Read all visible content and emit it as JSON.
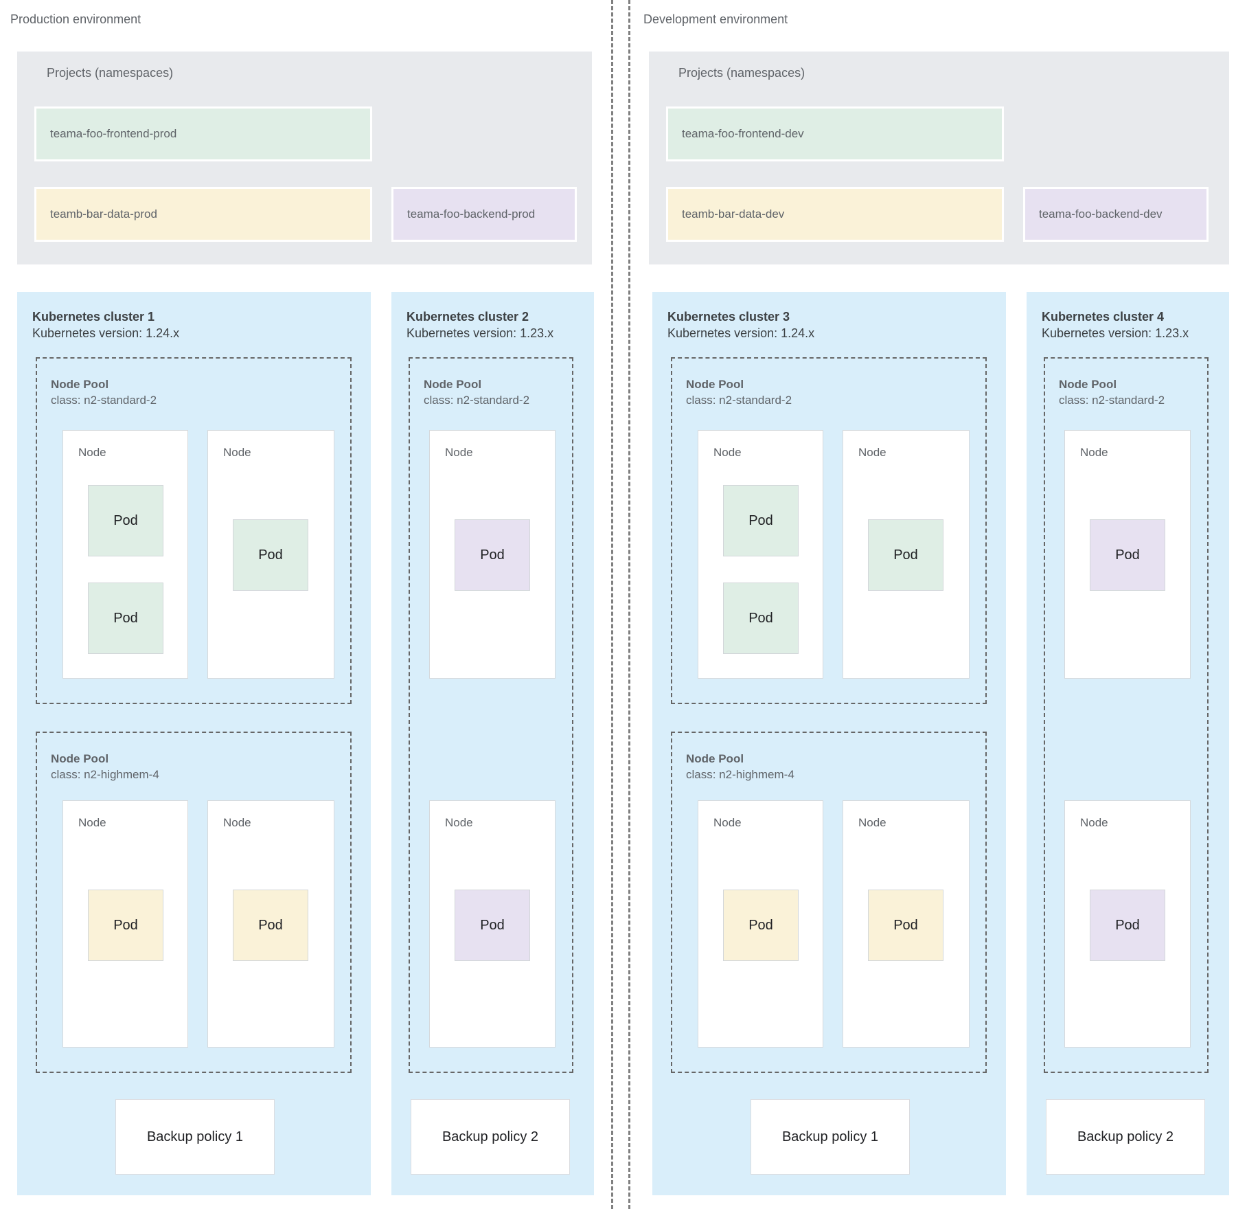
{
  "colors": {
    "cluster_bg": "#d9eefa",
    "projects_panel_bg": "#e8eaed",
    "mint": "#dfeee5",
    "yellow": "#faf2d8",
    "purple": "#e7e1f1",
    "node_bg": "#ffffff",
    "node_border": "#d6d9dc",
    "dashed_border": "#666666",
    "divider": "#808080",
    "text_gray": "#5f6368",
    "text_dark": "#3c4043",
    "pod_text": "#202124"
  },
  "environments": [
    {
      "label": "Production environment",
      "projects": {
        "title": "Projects (namespaces)",
        "namespaces": [
          {
            "name": "teama-foo-frontend-prod",
            "color": "mint"
          },
          {
            "name": "teamb-bar-data-prod",
            "color": "yellow"
          },
          {
            "name": "teama-foo-backend-prod",
            "color": "purple"
          }
        ]
      },
      "clusters": [
        {
          "title": "Kubernetes cluster 1",
          "version": "Kubernetes version: 1.24.x",
          "pools": [
            {
              "title": "Node Pool",
              "class_line": "class: n2-standard-2",
              "nodes": [
                {
                  "label": "Node",
                  "pods": [
                    {
                      "label": "Pod",
                      "color": "mint"
                    },
                    {
                      "label": "Pod",
                      "color": "mint"
                    }
                  ]
                },
                {
                  "label": "Node",
                  "pods": [
                    {
                      "label": "Pod",
                      "color": "mint"
                    }
                  ]
                }
              ]
            },
            {
              "title": "Node Pool",
              "class_line": "class: n2-highmem-4",
              "nodes": [
                {
                  "label": "Node",
                  "pods": [
                    {
                      "label": "Pod",
                      "color": "yellow"
                    }
                  ]
                },
                {
                  "label": "Node",
                  "pods": [
                    {
                      "label": "Pod",
                      "color": "yellow"
                    }
                  ]
                }
              ]
            }
          ],
          "backup": "Backup policy 1"
        },
        {
          "title": "Kubernetes cluster 2",
          "version": "Kubernetes version: 1.23.x",
          "pools": [
            {
              "title": "Node Pool",
              "class_line": "class: n2-standard-2",
              "nodes": [
                {
                  "label": "Node",
                  "pods": [
                    {
                      "label": "Pod",
                      "color": "purple"
                    }
                  ]
                },
                {
                  "label": "Node",
                  "pods": [
                    {
                      "label": "Pod",
                      "color": "purple"
                    }
                  ]
                }
              ]
            }
          ],
          "backup": "Backup policy 2"
        }
      ]
    },
    {
      "label": "Development environment",
      "projects": {
        "title": "Projects (namespaces)",
        "namespaces": [
          {
            "name": "teama-foo-frontend-dev",
            "color": "mint"
          },
          {
            "name": "teamb-bar-data-dev",
            "color": "yellow"
          },
          {
            "name": "teama-foo-backend-dev",
            "color": "purple"
          }
        ]
      },
      "clusters": [
        {
          "title": "Kubernetes cluster 3",
          "version": "Kubernetes version: 1.24.x",
          "pools": [
            {
              "title": "Node Pool",
              "class_line": "class: n2-standard-2",
              "nodes": [
                {
                  "label": "Node",
                  "pods": [
                    {
                      "label": "Pod",
                      "color": "mint"
                    },
                    {
                      "label": "Pod",
                      "color": "mint"
                    }
                  ]
                },
                {
                  "label": "Node",
                  "pods": [
                    {
                      "label": "Pod",
                      "color": "mint"
                    }
                  ]
                }
              ]
            },
            {
              "title": "Node Pool",
              "class_line": "class: n2-highmem-4",
              "nodes": [
                {
                  "label": "Node",
                  "pods": [
                    {
                      "label": "Pod",
                      "color": "yellow"
                    }
                  ]
                },
                {
                  "label": "Node",
                  "pods": [
                    {
                      "label": "Pod",
                      "color": "yellow"
                    }
                  ]
                }
              ]
            }
          ],
          "backup": "Backup policy 1"
        },
        {
          "title": "Kubernetes cluster 4",
          "version": "Kubernetes version: 1.23.x",
          "pools": [
            {
              "title": "Node Pool",
              "class_line": "class: n2-standard-2",
              "nodes": [
                {
                  "label": "Node",
                  "pods": [
                    {
                      "label": "Pod",
                      "color": "purple"
                    }
                  ]
                },
                {
                  "label": "Node",
                  "pods": [
                    {
                      "label": "Pod",
                      "color": "purple"
                    }
                  ]
                }
              ]
            }
          ],
          "backup": "Backup policy 2"
        }
      ]
    }
  ]
}
